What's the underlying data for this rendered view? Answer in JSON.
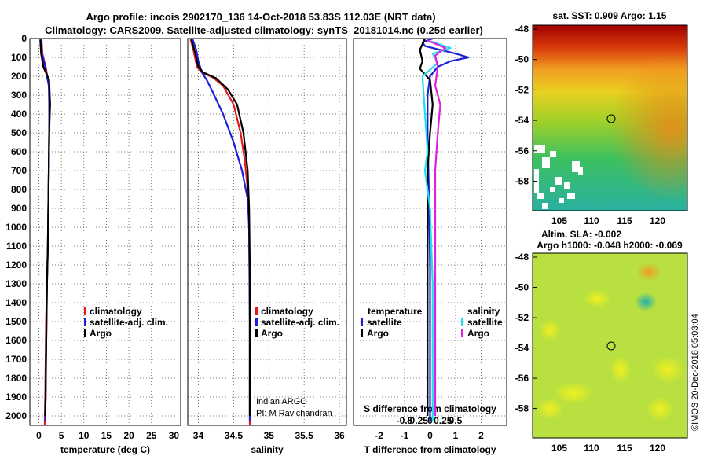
{
  "header": {
    "line1": "Argo profile: incois 2902170_136 14-Oct-2018 53.83S 112.03E (NRT data)",
    "line2": "Climatology: CARS2009. Satellite-adjusted climatology: synTS_20181014.nc (0.25d earlier)"
  },
  "colors": {
    "climatology": "#e41a1c",
    "satellite": "#1f1fd6",
    "argo": "#000000",
    "sat_salinity": "#20e0e8",
    "argo_salinity": "#e020e0"
  },
  "depth_axis": {
    "ticks": [
      "0",
      "100",
      "200",
      "300",
      "400",
      "500",
      "600",
      "700",
      "800",
      "900",
      "1000",
      "1100",
      "1200",
      "1300",
      "1400",
      "1500",
      "1600",
      "1700",
      "1800",
      "1900",
      "2000"
    ],
    "max": 2050
  },
  "chart_data": [
    {
      "id": "temperature",
      "type": "line",
      "xlabel": "temperature (deg C)",
      "xlim": [
        -2,
        31.5
      ],
      "xticks": [
        0,
        5,
        10,
        15,
        20,
        25,
        30
      ],
      "xtick_labels": [
        "0",
        "5",
        "10",
        "15",
        "20",
        "25",
        "30"
      ],
      "legend": [
        "climatology",
        "satellite-adj. clim.",
        "Argo"
      ],
      "series": [
        {
          "name": "climatology",
          "color_key": "climatology",
          "points": [
            [
              0.6,
              5
            ],
            [
              0.8,
              80
            ],
            [
              1.5,
              150
            ],
            [
              2.3,
              250
            ],
            [
              2.4,
              350
            ],
            [
              2.3,
              500
            ],
            [
              2.2,
              700
            ],
            [
              2.1,
              900
            ],
            [
              2.0,
              1100
            ],
            [
              1.8,
              1300
            ],
            [
              1.6,
              1500
            ],
            [
              1.5,
              1700
            ],
            [
              1.4,
              1900
            ],
            [
              1.3,
              2050
            ]
          ]
        },
        {
          "name": "satellite-adj. clim.",
          "color_key": "satellite",
          "points": [
            [
              0.5,
              5
            ],
            [
              0.7,
              80
            ],
            [
              1.4,
              150
            ],
            [
              2.2,
              250
            ],
            [
              2.3,
              350
            ],
            [
              2.3,
              500
            ],
            [
              2.2,
              700
            ],
            [
              2.1,
              900
            ],
            [
              2.0,
              1100
            ],
            [
              1.8,
              1300
            ],
            [
              1.7,
              1500
            ],
            [
              1.6,
              1700
            ],
            [
              1.5,
              1900
            ],
            [
              1.4,
              2030
            ]
          ]
        },
        {
          "name": "Argo",
          "color_key": "argo",
          "points": [
            [
              0.3,
              5
            ],
            [
              0.5,
              80
            ],
            [
              1.0,
              150
            ],
            [
              2.3,
              220
            ],
            [
              2.5,
              350
            ],
            [
              2.3,
              500
            ],
            [
              2.2,
              700
            ],
            [
              2.1,
              900
            ],
            [
              2.0,
              1100
            ],
            [
              1.8,
              1300
            ],
            [
              1.7,
              1500
            ],
            [
              1.6,
              1700
            ],
            [
              1.5,
              1900
            ],
            [
              1.4,
              2000
            ]
          ]
        }
      ]
    },
    {
      "id": "salinity",
      "type": "line",
      "xlabel": "salinity",
      "xlim": [
        33.85,
        36.1
      ],
      "xticks": [
        34,
        34.5,
        35,
        35.5,
        36
      ],
      "xtick_labels": [
        "34",
        "34.5",
        "35",
        "35.5",
        "36"
      ],
      "legend": [
        "climatology",
        "satellite-adj. clim.",
        "Argo"
      ],
      "notes": [
        "Indian ARGO",
        "PI: M Ravichandran"
      ],
      "series": [
        {
          "name": "climatology",
          "color_key": "climatology",
          "points": [
            [
              33.89,
              5
            ],
            [
              33.93,
              60
            ],
            [
              33.98,
              150
            ],
            [
              34.05,
              180
            ],
            [
              34.2,
              205
            ],
            [
              34.35,
              250
            ],
            [
              34.5,
              350
            ],
            [
              34.6,
              500
            ],
            [
              34.66,
              650
            ],
            [
              34.7,
              800
            ],
            [
              34.72,
              1000
            ],
            [
              34.73,
              1500
            ],
            [
              34.73,
              2050
            ]
          ]
        },
        {
          "name": "satellite-adj. clim.",
          "color_key": "satellite",
          "points": [
            [
              33.92,
              5
            ],
            [
              33.97,
              60
            ],
            [
              34.0,
              120
            ],
            [
              34.05,
              180
            ],
            [
              34.12,
              220
            ],
            [
              34.2,
              280
            ],
            [
              34.35,
              400
            ],
            [
              34.5,
              550
            ],
            [
              34.62,
              700
            ],
            [
              34.7,
              850
            ],
            [
              34.72,
              1000
            ],
            [
              34.73,
              1500
            ],
            [
              34.73,
              2030
            ]
          ]
        },
        {
          "name": "Argo",
          "color_key": "argo",
          "points": [
            [
              33.9,
              5
            ],
            [
              33.95,
              70
            ],
            [
              34.0,
              150
            ],
            [
              34.07,
              180
            ],
            [
              34.25,
              210
            ],
            [
              34.42,
              270
            ],
            [
              34.55,
              350
            ],
            [
              34.64,
              500
            ],
            [
              34.7,
              700
            ],
            [
              34.72,
              900
            ],
            [
              34.73,
              1200
            ],
            [
              34.73,
              1600
            ],
            [
              34.73,
              2000
            ]
          ]
        }
      ]
    },
    {
      "id": "difference",
      "type": "line",
      "xlabel": "T difference from climatology",
      "xlabel2": "S difference from climatology",
      "xlim": [
        -3,
        3
      ],
      "xticks": [
        -2,
        -1,
        0,
        1,
        2
      ],
      "xtick_labels": [
        "-2",
        "-1",
        "0",
        "1",
        "2"
      ],
      "s_ticks": [
        -0.5,
        -0.25,
        0,
        0.25,
        0.5
      ],
      "s_tick_labels": [
        "-0.5",
        "-0.25",
        "0",
        "0.25",
        "0.5"
      ],
      "legend_temperature_title": "temperature",
      "legend_salinity_title": "salinity",
      "legend_temperature": [
        "satellite",
        "Argo"
      ],
      "legend_salinity": [
        "satellite",
        "Argo"
      ],
      "series": [
        {
          "name": "T satellite",
          "color_key": "satellite",
          "points": [
            [
              0.1,
              0
            ],
            [
              -0.3,
              20
            ],
            [
              -0.2,
              40
            ],
            [
              0.4,
              60
            ],
            [
              1.0,
              80
            ],
            [
              1.5,
              100
            ],
            [
              0.8,
              120
            ],
            [
              0.3,
              150
            ],
            [
              0.0,
              200
            ],
            [
              -0.1,
              300
            ],
            [
              -0.1,
              500
            ],
            [
              -0.05,
              800
            ],
            [
              0.0,
              1200
            ],
            [
              0.0,
              1600
            ],
            [
              0.0,
              2030
            ]
          ]
        },
        {
          "name": "T Argo",
          "color_key": "argo",
          "points": [
            [
              -0.2,
              0
            ],
            [
              -0.4,
              60
            ],
            [
              -0.3,
              120
            ],
            [
              -0.4,
              160
            ],
            [
              0.0,
              220
            ],
            [
              0.1,
              350
            ],
            [
              0.0,
              500
            ],
            [
              -0.1,
              700
            ],
            [
              -0.1,
              900
            ],
            [
              -0.1,
              1200
            ],
            [
              -0.1,
              1600
            ],
            [
              -0.1,
              2000
            ]
          ]
        },
        {
          "name": "S satellite",
          "color_key": "sat_salinity",
          "points": [
            [
              -0.1,
              10
            ],
            [
              0.8,
              50
            ],
            [
              0.1,
              80
            ],
            [
              0.3,
              130
            ],
            [
              -0.3,
              200
            ],
            [
              -0.2,
              400
            ],
            [
              -0.1,
              600
            ],
            [
              -0.2,
              700
            ],
            [
              0.0,
              900
            ],
            [
              0.1,
              1300
            ],
            [
              0.1,
              1700
            ],
            [
              0.1,
              2030
            ]
          ]
        },
        {
          "name": "S Argo",
          "color_key": "argo_salinity",
          "points": [
            [
              -0.1,
              10
            ],
            [
              0.6,
              50
            ],
            [
              0.2,
              90
            ],
            [
              0.3,
              150
            ],
            [
              0.2,
              250
            ],
            [
              0.4,
              350
            ],
            [
              0.3,
              500
            ],
            [
              0.2,
              700
            ],
            [
              0.2,
              900
            ],
            [
              0.2,
              1300
            ],
            [
              0.2,
              1700
            ],
            [
              0.2,
              2000
            ]
          ]
        }
      ]
    }
  ],
  "maps": [
    {
      "id": "sst",
      "title": "sat. SST: 0.909 Argo: 1.15",
      "lat_ticks": [
        "-48",
        "-50",
        "-52",
        "-54",
        "-56",
        "-58"
      ],
      "lon_ticks": [
        "105",
        "110",
        "115",
        "120"
      ],
      "marker": {
        "lon": 112.03,
        "lat": -53.83
      }
    },
    {
      "id": "sla",
      "title": "Altim. SLA: -0.002",
      "subtitle": "Argo h1000: -0.048 h2000: -0.069",
      "lat_ticks": [
        "-48",
        "-50",
        "-52",
        "-54",
        "-56",
        "-58"
      ],
      "lon_ticks": [
        "105",
        "110",
        "115",
        "120"
      ],
      "marker": {
        "lon": 112.03,
        "lat": -53.83
      }
    }
  ],
  "footer": {
    "credit": "©IMOS 20-Dec-2018 05:03:04"
  }
}
